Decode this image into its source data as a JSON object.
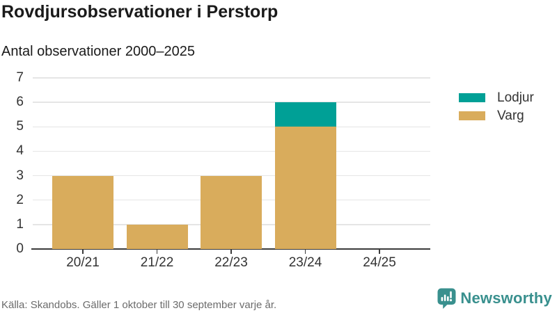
{
  "header": {
    "title": "Rovdjursobservationer i Perstorp",
    "subtitle": "Antal observationer 2000–2025"
  },
  "chart_data": {
    "type": "bar",
    "stacked": true,
    "title": "Rovdjursobservationer i Perstorp",
    "subtitle": "Antal observationer 2000–2025",
    "categories": [
      "20/21",
      "21/22",
      "22/23",
      "23/24",
      "24/25"
    ],
    "series": [
      {
        "name": "Lodjur",
        "color": "#00a096",
        "values": [
          0,
          0,
          0,
          1,
          0
        ]
      },
      {
        "name": "Varg",
        "color": "#d9ac5c",
        "values": [
          3,
          1,
          3,
          5,
          0
        ]
      }
    ],
    "totals": [
      3,
      1,
      3,
      6,
      0
    ],
    "xlabel": "",
    "ylabel": "",
    "ylim": [
      0,
      7
    ],
    "yticks": [
      0,
      1,
      2,
      3,
      4,
      5,
      6,
      7
    ],
    "grid": true,
    "legend_position": "right"
  },
  "footer": {
    "source": "Källa: Skandobs. Gäller 1 oktober till 30 september varje år.",
    "brand": "Newsworthy"
  },
  "colors": {
    "lodjur": "#00a096",
    "varg": "#d9ac5c",
    "axis_text": "#333333",
    "gridline": "#e5e5e5",
    "axis_line": "#3b3b3b",
    "title_text": "#1a1a1a",
    "source_text": "#6b6b6b",
    "brand_teal": "#39908e"
  }
}
